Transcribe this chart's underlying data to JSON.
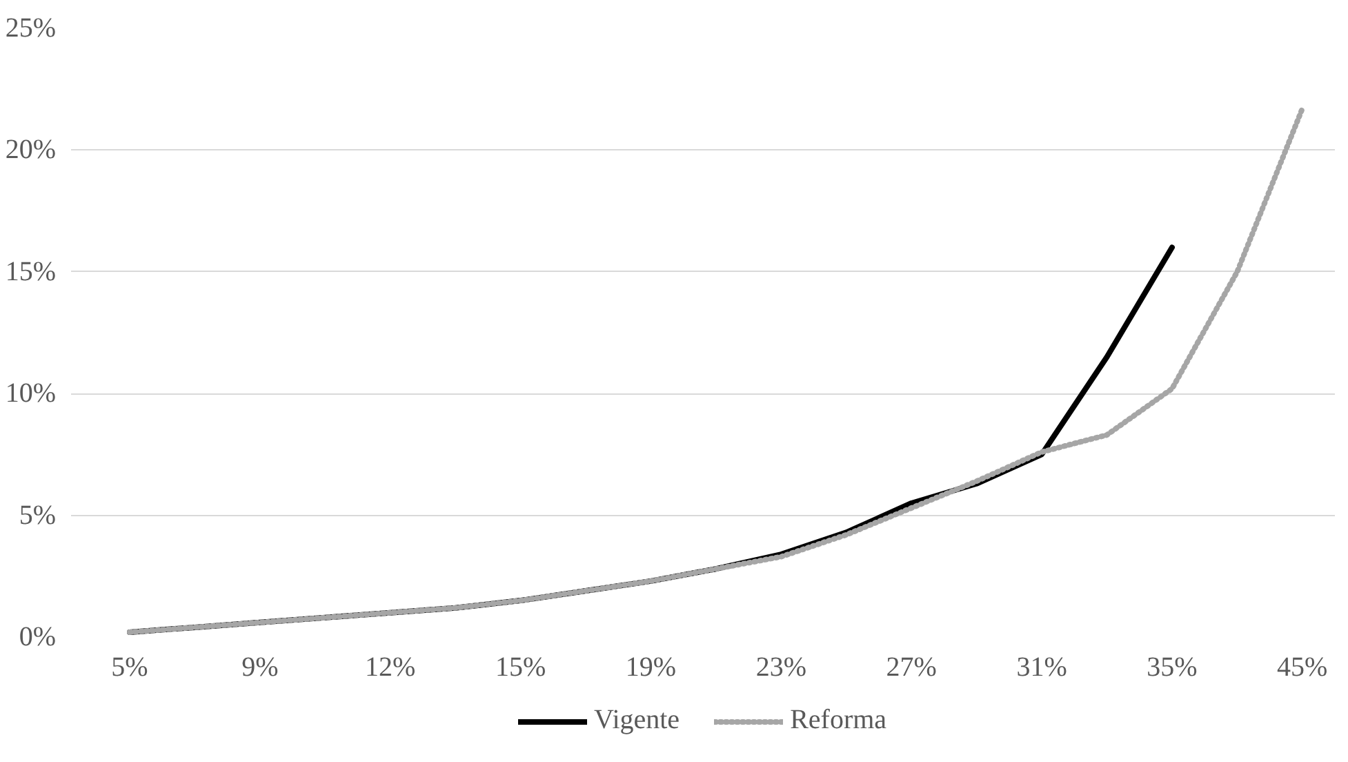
{
  "chart_data": {
    "type": "line",
    "categories": [
      "5%",
      null,
      "9%",
      null,
      "12%",
      null,
      "15%",
      null,
      "19%",
      null,
      "23%",
      null,
      "27%",
      null,
      "31%",
      null,
      "35%",
      null,
      "45%"
    ],
    "series": [
      {
        "name": "Vigente",
        "color": "#000000",
        "line_style": "solid",
        "values": [
          0.2,
          0.4,
          0.6,
          0.8,
          1.0,
          1.2,
          1.5,
          1.9,
          2.3,
          2.8,
          3.4,
          4.3,
          5.5,
          6.3,
          7.5,
          11.5,
          16.0,
          null,
          null
        ]
      },
      {
        "name": "Reforma",
        "color": "#a6a6a6",
        "line_style": "dotted",
        "values": [
          0.2,
          0.4,
          0.6,
          0.8,
          1.0,
          1.2,
          1.5,
          1.9,
          2.3,
          2.8,
          3.3,
          4.2,
          5.3,
          6.4,
          7.6,
          8.3,
          10.2,
          15.0,
          21.7
        ]
      }
    ],
    "ylim": [
      0,
      25
    ],
    "yticks": [
      {
        "value": 0,
        "label": "0%"
      },
      {
        "value": 5,
        "label": "5%"
      },
      {
        "value": 10,
        "label": "10%"
      },
      {
        "value": 15,
        "label": "15%"
      },
      {
        "value": 20,
        "label": "20%"
      },
      {
        "value": 25,
        "label": "25%"
      }
    ],
    "grid": "y",
    "legend": "bottom"
  }
}
